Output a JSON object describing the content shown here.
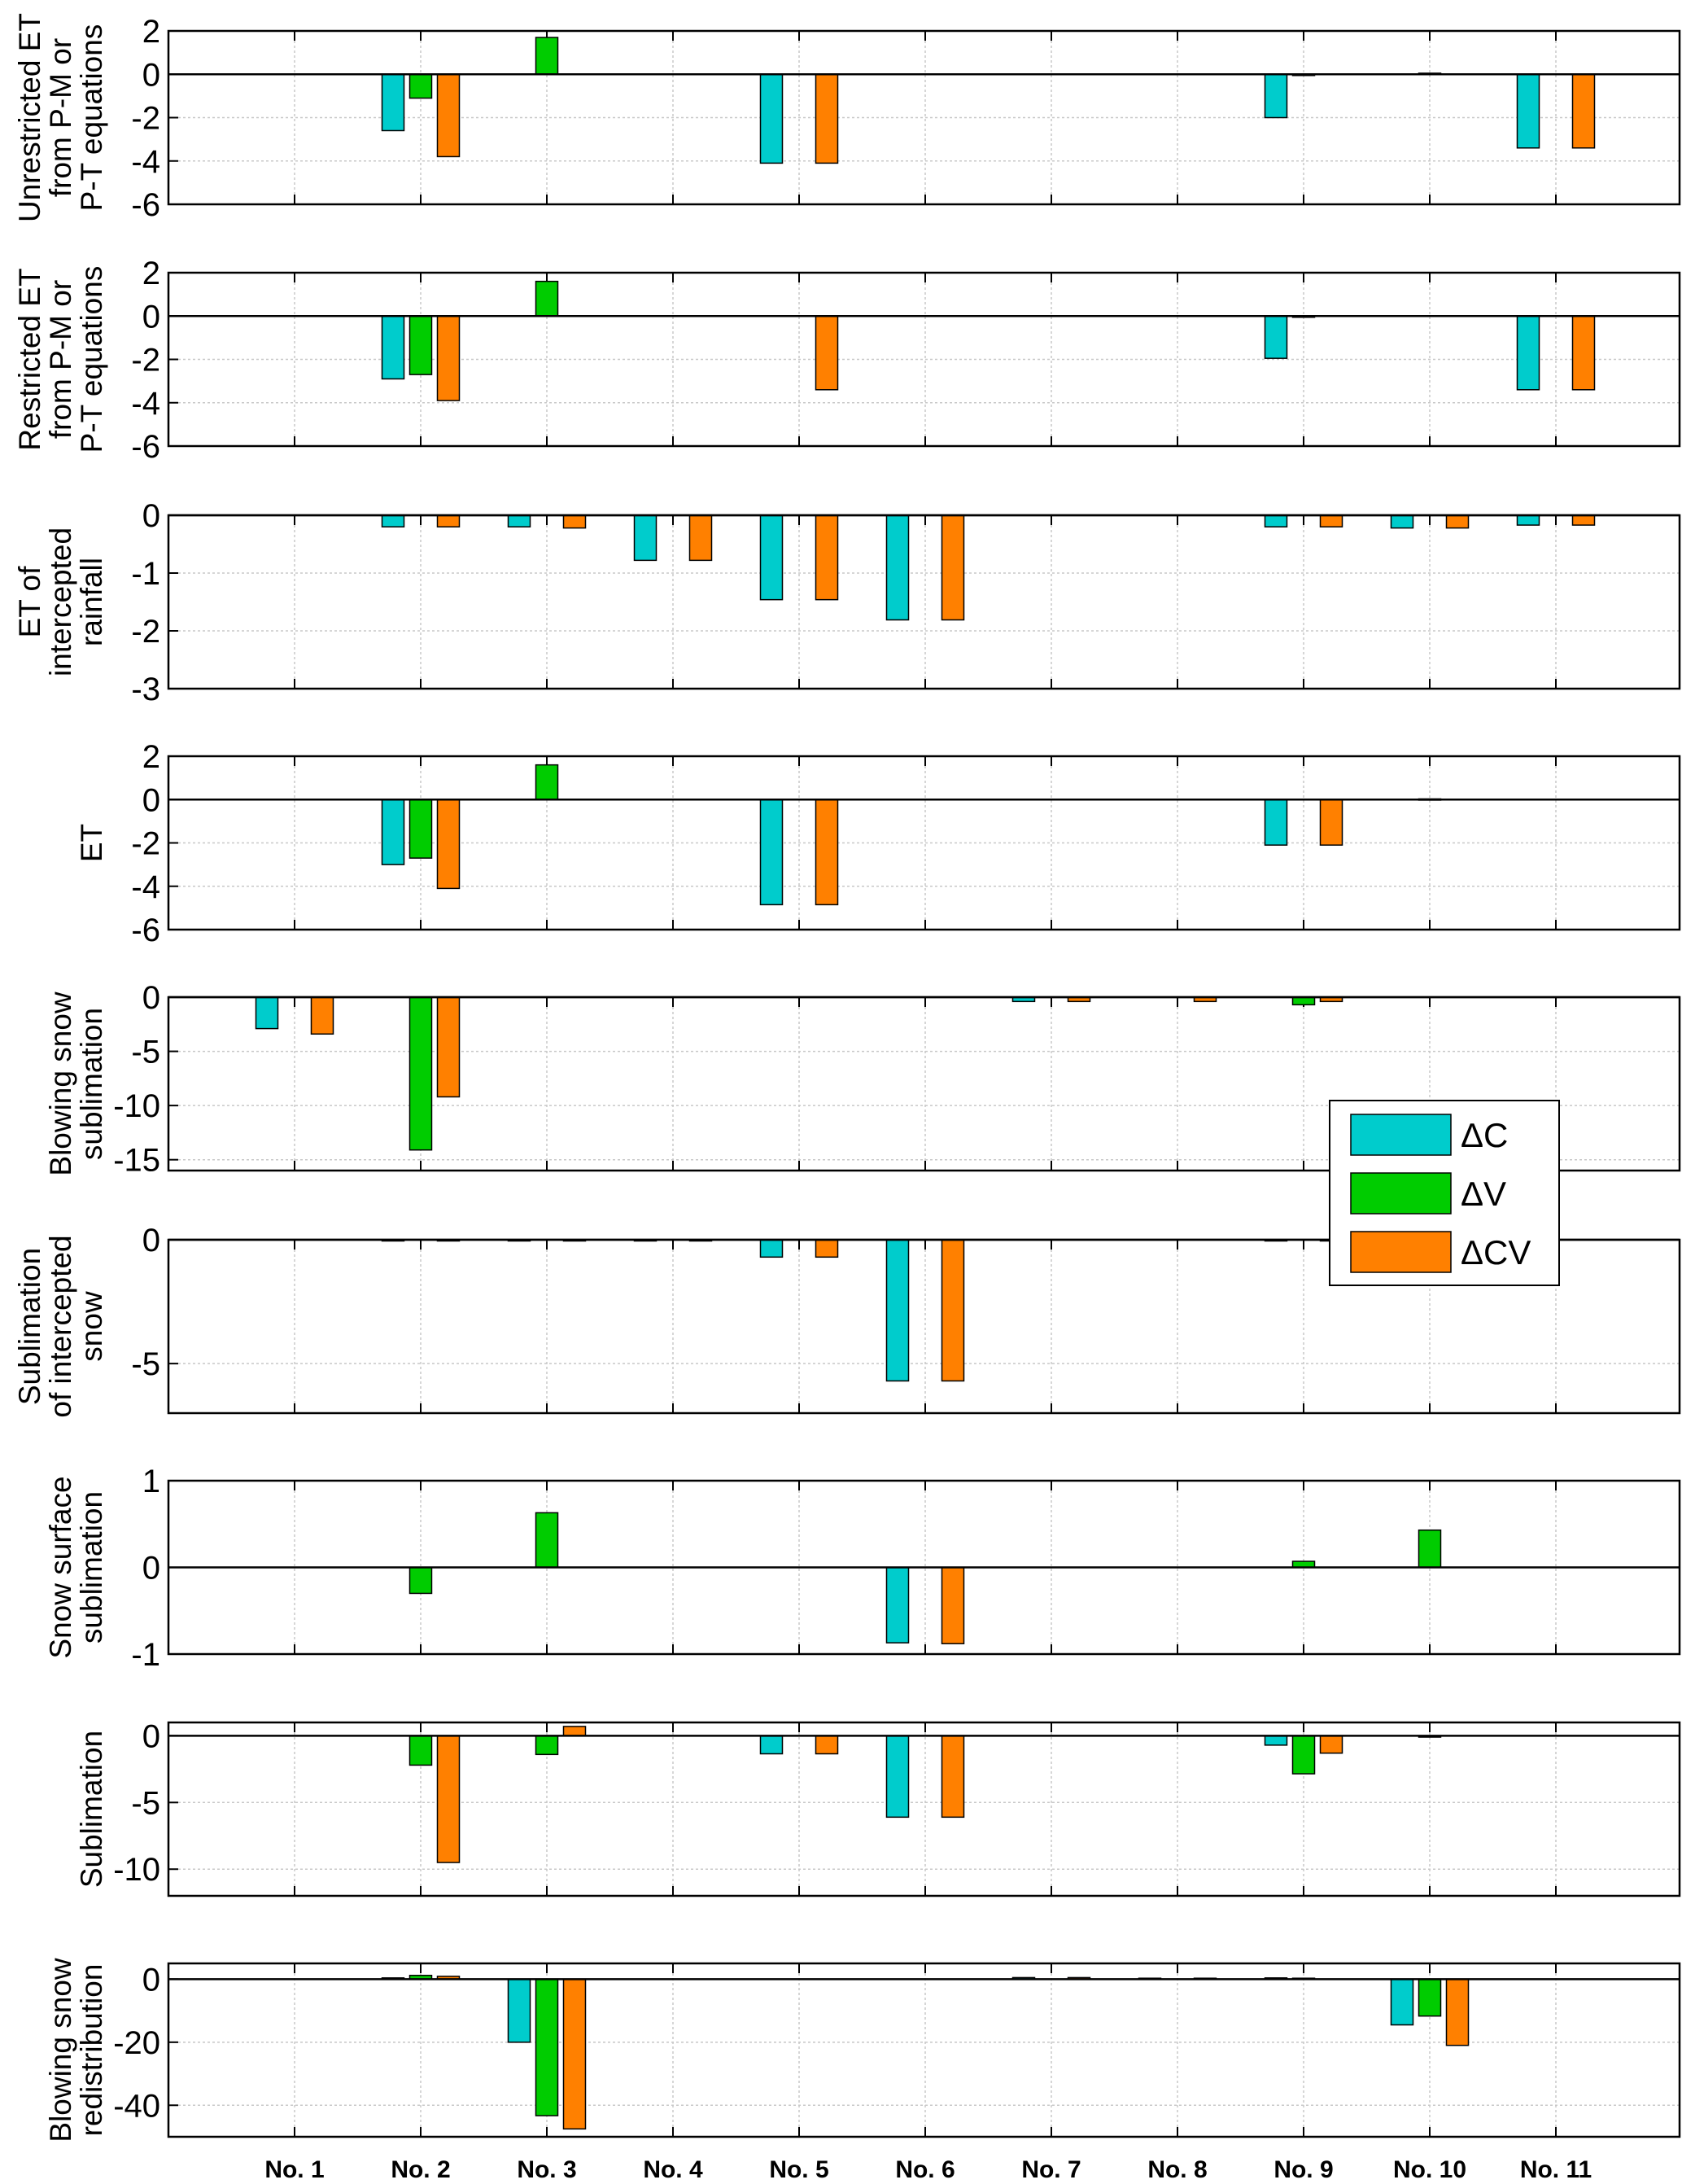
{
  "chart_data": {
    "type": "bar",
    "categories": [
      "No. 1",
      "No. 2",
      "No. 3",
      "No. 4",
      "No. 5",
      "No. 6",
      "No. 7",
      "No. 8",
      "No. 9",
      "No. 10",
      "No. 11"
    ],
    "legend": {
      "position": "right",
      "entries": [
        {
          "name": "ΔC",
          "color": "#00CCCC"
        },
        {
          "name": "ΔV",
          "color": "#00CC00"
        },
        {
          "name": "ΔCV",
          "color": "#FF8000"
        }
      ]
    },
    "grid": true,
    "panels": [
      {
        "ylabel": [
          "Unrestricted ET",
          "from P-M or",
          "P-T equations"
        ],
        "ylim": [
          -6,
          2
        ],
        "yticks": [
          -6,
          -4,
          -2,
          0,
          2
        ],
        "series": [
          [
            0,
            -2.6,
            0,
            0,
            -4.1,
            0,
            0,
            0,
            -2.0,
            0,
            -3.4
          ],
          [
            0,
            -1.1,
            1.7,
            0,
            0,
            0,
            0,
            0,
            -0.05,
            0.05,
            0
          ],
          [
            0,
            -3.8,
            0,
            0,
            -4.1,
            0,
            0,
            0,
            0,
            0,
            -3.4
          ]
        ]
      },
      {
        "ylabel": [
          "Restricted ET",
          "from P-M or",
          "P-T equations"
        ],
        "ylim": [
          -6,
          2
        ],
        "yticks": [
          -6,
          -4,
          -2,
          0,
          2
        ],
        "series": [
          [
            0,
            -2.9,
            0,
            0,
            0,
            0,
            0,
            0,
            -1.95,
            0,
            -3.4
          ],
          [
            0,
            -2.7,
            1.6,
            0,
            0,
            0,
            0,
            0,
            -0.05,
            0,
            0
          ],
          [
            0,
            -3.9,
            0,
            0,
            -3.4,
            0,
            0,
            0,
            0,
            0,
            -3.4
          ]
        ]
      },
      {
        "ylabel": [
          "ET of",
          "intercepted",
          "rainfall"
        ],
        "ylim": [
          -3,
          0
        ],
        "yticks": [
          -3,
          -2,
          -1,
          0
        ],
        "series": [
          [
            0,
            -0.2,
            -0.2,
            -0.78,
            -1.46,
            -1.81,
            0,
            0,
            -0.2,
            -0.22,
            -0.17
          ],
          [
            0,
            0,
            0,
            0,
            0,
            0,
            0,
            0,
            0,
            0,
            0
          ],
          [
            0,
            -0.2,
            -0.22,
            -0.78,
            -1.46,
            -1.81,
            0,
            0,
            -0.2,
            -0.22,
            -0.17
          ]
        ]
      },
      {
        "ylabel": [
          "ET"
        ],
        "ylim": [
          -6,
          2
        ],
        "yticks": [
          -6,
          -4,
          -2,
          0,
          2
        ],
        "series": [
          [
            0,
            -3.0,
            0,
            0,
            -4.85,
            0,
            0,
            0,
            -2.1,
            0,
            0
          ],
          [
            0,
            -2.7,
            1.6,
            0,
            0,
            0,
            0,
            0,
            0,
            0.03,
            0
          ],
          [
            0,
            -4.1,
            0,
            0,
            -4.85,
            0,
            0,
            0,
            -2.1,
            0,
            0
          ]
        ]
      },
      {
        "ylabel": [
          "Blowing snow",
          "sublimation"
        ],
        "ylim": [
          -16,
          0
        ],
        "yticks": [
          -15,
          -10,
          -5,
          0
        ],
        "series": [
          [
            -2.9,
            0,
            0,
            0,
            0,
            0,
            -0.4,
            0,
            0,
            0,
            0
          ],
          [
            0,
            -14.1,
            0,
            0,
            0,
            0,
            0,
            0,
            -0.7,
            0,
            0
          ],
          [
            -3.4,
            -9.2,
            0,
            0,
            0,
            0,
            -0.4,
            -0.4,
            -0.4,
            0,
            0
          ]
        ]
      },
      {
        "ylabel": [
          "Sublimation",
          "of intercepted",
          "snow"
        ],
        "ylim": [
          -7,
          0
        ],
        "yticks": [
          -5,
          0
        ],
        "series": [
          [
            0,
            -0.05,
            -0.05,
            -0.05,
            -0.7,
            -5.7,
            0,
            0,
            -0.05,
            0,
            0
          ],
          [
            0,
            0,
            0,
            0,
            0,
            0,
            0,
            0,
            0,
            0,
            0
          ],
          [
            0,
            -0.05,
            -0.05,
            -0.05,
            -0.7,
            -5.7,
            0,
            0,
            -0.05,
            0,
            0
          ]
        ]
      },
      {
        "ylabel": [
          "Snow surface",
          "sublimation"
        ],
        "ylim": [
          -1,
          1
        ],
        "yticks": [
          -1,
          0,
          1
        ],
        "series": [
          [
            0,
            0,
            0,
            0,
            0,
            -0.87,
            0,
            0,
            0,
            0,
            0
          ],
          [
            0,
            -0.3,
            0.63,
            0,
            0,
            0,
            0,
            0,
            0.07,
            0.43,
            0
          ],
          [
            0,
            0,
            0,
            0,
            0,
            -0.88,
            0,
            0,
            0,
            0,
            0
          ]
        ]
      },
      {
        "ylabel": [
          "Sublimation"
        ],
        "ylim": [
          -12,
          1
        ],
        "yticks": [
          -10,
          -5,
          0
        ],
        "series": [
          [
            0,
            0,
            0,
            0,
            -1.35,
            -6.1,
            0,
            0,
            -0.7,
            0,
            0
          ],
          [
            0,
            -2.2,
            -1.4,
            0,
            0,
            0,
            0,
            0,
            -2.85,
            -0.1,
            0
          ],
          [
            0,
            -9.5,
            0.7,
            0,
            -1.35,
            -6.1,
            0,
            0,
            -1.3,
            0,
            0
          ]
        ]
      },
      {
        "ylabel": [
          "Blowing snow",
          "redistribution"
        ],
        "ylim": [
          -50,
          5
        ],
        "yticks": [
          -40,
          -20,
          0
        ],
        "series": [
          [
            0,
            0.4,
            -20,
            0,
            0,
            0,
            0.5,
            0.3,
            0.4,
            -14.5,
            0
          ],
          [
            0,
            1.2,
            -43.3,
            0,
            0,
            0,
            0,
            0,
            0.3,
            -11.7,
            0
          ],
          [
            0,
            0.9,
            -47.5,
            0,
            0,
            0,
            0.5,
            0.3,
            0,
            -21,
            0
          ]
        ]
      }
    ]
  }
}
